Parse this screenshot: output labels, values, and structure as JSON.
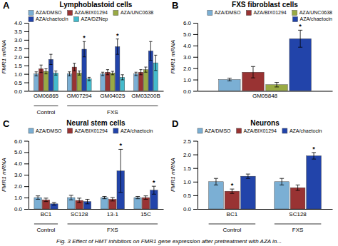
{
  "chart_data": [
    {
      "type": "bar",
      "panel_label": "A",
      "title": "Lymphoblastoid cells",
      "ylabel": "FMR1 mRNA",
      "categories": [
        "GM06865",
        "GM07294",
        "GM04025",
        "GM03200B"
      ],
      "series": [
        {
          "name": "AZA/DMSO",
          "color": "#7bafd4",
          "values": [
            1.0,
            1.0,
            1.0,
            1.0
          ],
          "errors": [
            0.12,
            0.12,
            0.1,
            0.1
          ]
        },
        {
          "name": "AZA/BIX01294",
          "color": "#993333",
          "values": [
            1.3,
            1.4,
            1.1,
            1.1
          ],
          "errors": [
            0.22,
            0.22,
            0.15,
            0.15
          ]
        },
        {
          "name": "AZA/UNC0638",
          "color": "#99aa44",
          "values": [
            1.15,
            1.05,
            1.05,
            1.25
          ],
          "errors": [
            0.15,
            0.12,
            0.1,
            0.15
          ]
        },
        {
          "name": "AZA/chaetocin",
          "color": "#2244aa",
          "values": [
            1.85,
            2.45,
            2.6,
            2.35
          ],
          "errors": [
            0.3,
            0.45,
            0.45,
            0.55
          ]
        },
        {
          "name": "AZA/DZNep",
          "color": "#44bbcc",
          "values": [
            1.05,
            0.7,
            0.8,
            1.65
          ],
          "errors": [
            0.12,
            0.1,
            0.15,
            0.45
          ]
        }
      ],
      "annotations": [
        {
          "text": "*",
          "series": "AZA/chaetocin",
          "category": "GM07294"
        },
        {
          "text": "*",
          "series": "AZA/chaetocin",
          "category": "GM04025"
        }
      ],
      "group_labels": [
        "Control",
        "FXS"
      ],
      "group_membership": [
        0,
        1,
        1,
        1
      ],
      "ylim": [
        0,
        4
      ],
      "yticks": [
        {
          "value": 0,
          "label": "0.0"
        },
        0.5,
        {
          "value": 1,
          "label": "1.0"
        },
        1.5,
        {
          "value": 2,
          "label": "2.0"
        },
        2.5,
        {
          "value": 3,
          "label": "3.0"
        },
        3.5,
        {
          "value": 4,
          "label": "4.0"
        }
      ],
      "grid": false,
      "legend": "upper left"
    },
    {
      "type": "bar",
      "panel_label": "B",
      "title": "FXS fibroblast cells",
      "ylabel": "FMR1 mRNA",
      "categories": [
        "GM05848"
      ],
      "series": [
        {
          "name": "AZA/DMSO",
          "color": "#7bafd4",
          "values": [
            1.0
          ],
          "errors": [
            0.12
          ]
        },
        {
          "name": "AZA/BIX01294",
          "color": "#993333",
          "values": [
            1.65
          ],
          "errors": [
            0.5
          ]
        },
        {
          "name": "AZA/UNC0638",
          "color": "#99aa44",
          "values": [
            0.55
          ],
          "errors": [
            0.2
          ]
        },
        {
          "name": "AZA/chaetocin",
          "color": "#2244aa",
          "values": [
            4.6
          ],
          "errors": [
            0.75
          ]
        }
      ],
      "annotations": [
        {
          "text": "*",
          "series": "AZA/chaetocin",
          "category": "GM05848"
        }
      ],
      "ylim": [
        0,
        6
      ],
      "yticks": [
        {
          "value": 0,
          "label": "0.0"
        },
        {
          "value": 1,
          "label": "1.0"
        },
        {
          "value": 2,
          "label": "2.0"
        },
        {
          "value": 3,
          "label": "3.0"
        },
        {
          "value": 4,
          "label": "4.0"
        },
        {
          "value": 5,
          "label": "5.0"
        },
        {
          "value": 6,
          "label": "6.0"
        }
      ],
      "grid": false,
      "legend": "upper right"
    },
    {
      "type": "bar",
      "panel_label": "C",
      "title": "Neural stem cells",
      "ylabel": "FMR1 mRNA",
      "categories": [
        "BC1",
        "SC128",
        "13-1",
        "15C"
      ],
      "series": [
        {
          "name": "AZA/DMSO",
          "color": "#7bafd4",
          "values": [
            1.0,
            1.0,
            1.0,
            1.0
          ],
          "errors": [
            0.15,
            0.2,
            0.1,
            0.1
          ]
        },
        {
          "name": "AZA/BIX01294",
          "color": "#993333",
          "values": [
            0.8,
            0.75,
            0.85,
            1.0
          ],
          "errors": [
            0.15,
            0.2,
            0.15,
            0.15
          ]
        },
        {
          "name": "AZA/chaetocin",
          "color": "#2244aa",
          "values": [
            0.45,
            0.65,
            3.35,
            1.65
          ],
          "errors": [
            0.12,
            0.2,
            1.9,
            0.35
          ]
        }
      ],
      "annotations": [
        {
          "text": "*",
          "series": "AZA/chaetocin",
          "category": "13-1"
        },
        {
          "text": "*",
          "series": "AZA/chaetocin",
          "category": "15C"
        }
      ],
      "group_labels": [
        "Control",
        "FXS"
      ],
      "group_membership": [
        0,
        1,
        1,
        1
      ],
      "ylim": [
        0,
        6
      ],
      "yticks": [
        {
          "value": 0,
          "label": "0.0"
        },
        {
          "value": 1,
          "label": "1.0"
        },
        {
          "value": 2,
          "label": "2.0"
        },
        {
          "value": 3,
          "label": "3.0"
        },
        {
          "value": 4,
          "label": "4.0"
        },
        {
          "value": 5,
          "label": "5.0"
        },
        {
          "value": 6,
          "label": "6.0"
        }
      ],
      "grid": false,
      "legend": "upper left"
    },
    {
      "type": "bar",
      "panel_label": "D",
      "title": "Neurons",
      "ylabel": "FMR1 mRNA",
      "categories": [
        "BC1",
        "SC128"
      ],
      "series": [
        {
          "name": "AZA/DMSO",
          "color": "#7bafd4",
          "values": [
            1.0,
            1.0
          ],
          "errors": [
            0.12,
            0.12
          ]
        },
        {
          "name": "AZA/BIX01294",
          "color": "#993333",
          "values": [
            0.65,
            0.78
          ],
          "errors": [
            0.08,
            0.1
          ]
        },
        {
          "name": "AZA/chaetocin",
          "color": "#2244aa",
          "values": [
            1.2,
            1.95
          ],
          "errors": [
            0.08,
            0.12
          ]
        }
      ],
      "annotations": [
        {
          "text": "*",
          "series": "AZA/BIX01294",
          "category": "BC1"
        },
        {
          "text": "*",
          "series": "AZA/chaetocin",
          "category": "SC128"
        }
      ],
      "group_labels": [
        "Control",
        "FXS"
      ],
      "group_membership": [
        0,
        1
      ],
      "ylim": [
        0,
        2.5
      ],
      "yticks": [
        {
          "value": 0,
          "label": "0.0"
        },
        0.5,
        {
          "value": 1,
          "label": "1.0"
        },
        1.5,
        {
          "value": 2,
          "label": "2.0"
        },
        2.5
      ],
      "grid": false,
      "legend": "upper left"
    }
  ],
  "caption": "Fig. 3  Effect of HMT inhibitors on FMR1 gene expression after pretreatment with AZA in..."
}
